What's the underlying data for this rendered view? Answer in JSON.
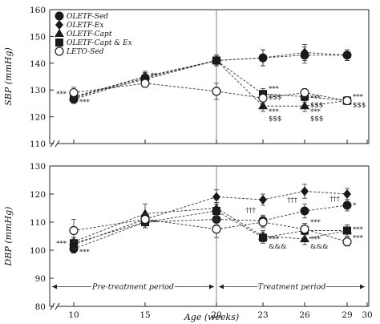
{
  "chart_data": [
    {
      "type": "line",
      "ylabel": "SBP (mmHg)",
      "ylim": [
        110,
        160
      ],
      "yticks": [
        110,
        120,
        130,
        140,
        150,
        160
      ],
      "x": [
        10,
        15,
        20,
        23,
        26,
        29
      ],
      "legend_position": "top-left",
      "series": [
        {
          "name": "OLETF-Sed",
          "marker": "circle-filled",
          "values": [
            126.5,
            134.5,
            141,
            142,
            143,
            143
          ],
          "errors": [
            1.5,
            1.5,
            2,
            3,
            3,
            2
          ]
        },
        {
          "name": "OLETF-Ex",
          "marker": "diamond-filled",
          "values": [
            127,
            135,
            141,
            142,
            144,
            143
          ],
          "errors": [
            1.5,
            1.5,
            2,
            3,
            3,
            2
          ]
        },
        {
          "name": "OLETF-Capt",
          "marker": "triangle-filled",
          "values": [
            127.5,
            135,
            141,
            124,
            124,
            126
          ],
          "errors": [
            1.5,
            2,
            2,
            2,
            2,
            1.5
          ]
        },
        {
          "name": "OLETF-Capt & Ex",
          "marker": "square-filled",
          "values": [
            127.5,
            134,
            141,
            128.5,
            127.5,
            126
          ],
          "errors": [
            1.5,
            2,
            2,
            2,
            2,
            1.5
          ]
        },
        {
          "name": "LETO-Sed",
          "marker": "circle-open",
          "values": [
            129,
            132.5,
            129.5,
            127,
            129,
            126
          ],
          "errors": [
            2,
            1.5,
            3,
            2,
            1.5,
            1.5
          ]
        }
      ],
      "annotations": [
        {
          "x": 10,
          "y": 128.5,
          "text": "***",
          "side": "left"
        },
        {
          "x": 10,
          "y": 125.5,
          "text": "***",
          "side": "right"
        },
        {
          "x": 15,
          "y": 135.5,
          "text": "**",
          "side": "right"
        },
        {
          "x": 23,
          "y": 130.5,
          "text": "***",
          "side": "right"
        },
        {
          "x": 23,
          "y": 127.5,
          "text": "$$$",
          "side": "right"
        },
        {
          "x": 23,
          "y": 122,
          "text": "***",
          "side": "right"
        },
        {
          "x": 23,
          "y": 119.5,
          "text": "$$$",
          "side": "right"
        },
        {
          "x": 26,
          "y": 127,
          "text": "***",
          "side": "right"
        },
        {
          "x": 26,
          "y": 124.5,
          "text": "$$$",
          "side": "right"
        },
        {
          "x": 26,
          "y": 122,
          "text": "***",
          "side": "right"
        },
        {
          "x": 26,
          "y": 119.5,
          "text": "$$$",
          "side": "right"
        },
        {
          "x": 29,
          "y": 127.5,
          "text": "***",
          "side": "right"
        },
        {
          "x": 29,
          "y": 124.5,
          "text": "$$$",
          "side": "right"
        }
      ]
    },
    {
      "type": "line",
      "xlabel": "Age (weeks)",
      "ylabel": "DBP (mmHg)",
      "ylim": [
        80,
        130
      ],
      "yticks": [
        80,
        90,
        100,
        110,
        120,
        130
      ],
      "x": [
        10,
        15,
        20,
        23,
        26,
        29
      ],
      "xticks": [
        "10",
        "15",
        "20",
        "23",
        "26",
        "29",
        "30"
      ],
      "series": [
        {
          "name": "OLETF-Sed",
          "marker": "circle-filled",
          "values": [
            100.5,
            110,
            111,
            110.5,
            114,
            116
          ],
          "errors": [
            1.5,
            2,
            2,
            2,
            2.5,
            2
          ]
        },
        {
          "name": "OLETF-Ex",
          "marker": "diamond-filled",
          "values": [
            102,
            111,
            119,
            118,
            121,
            120
          ],
          "errors": [
            1.5,
            2,
            2.5,
            2,
            2.5,
            2
          ]
        },
        {
          "name": "OLETF-Capt",
          "marker": "triangle-filled",
          "values": [
            103,
            113,
            115,
            105,
            104,
            107
          ],
          "errors": [
            1.5,
            3.5,
            3,
            2,
            2,
            2
          ]
        },
        {
          "name": "OLETF-Capt & Ex",
          "marker": "square-filled",
          "values": [
            102.5,
            110,
            114,
            104.5,
            107,
            107
          ],
          "errors": [
            2,
            2,
            3,
            2,
            2.5,
            2
          ]
        },
        {
          "name": "LETO-Sed",
          "marker": "circle-open",
          "values": [
            107,
            111,
            107.5,
            110,
            107.5,
            103
          ],
          "errors": [
            4,
            2,
            3,
            2,
            2,
            1.5
          ]
        }
      ],
      "period_labels": [
        {
          "text": "Pre-treatment period",
          "from": 8.2,
          "to": 20,
          "y": 87
        },
        {
          "text": "Treatment period",
          "from": 20,
          "to": 30,
          "y": 87
        }
      ],
      "annotations": [
        {
          "x": 10,
          "y": 102.5,
          "text": "***",
          "side": "left"
        },
        {
          "x": 10,
          "y": 99.5,
          "text": "***",
          "side": "right"
        },
        {
          "x": 15,
          "y": 110,
          "text": "**",
          "side": "right"
        },
        {
          "x": 23,
          "y": 114.5,
          "text": "†††",
          "side": "left"
        },
        {
          "x": 26,
          "y": 118,
          "text": "†††",
          "side": "left"
        },
        {
          "x": 29,
          "y": 118.5,
          "text": "†††",
          "side": "left"
        },
        {
          "x": 29,
          "y": 116,
          "text": "*",
          "side": "right"
        },
        {
          "x": 23,
          "y": 104,
          "text": "***",
          "side": "right"
        },
        {
          "x": 23,
          "y": 101.5,
          "text": "&&&",
          "side": "right"
        },
        {
          "x": 26,
          "y": 110,
          "text": "***",
          "side": "right"
        },
        {
          "x": 26,
          "y": 104,
          "text": "***",
          "side": "right"
        },
        {
          "x": 26,
          "y": 101.5,
          "text": "&&&",
          "side": "right"
        },
        {
          "x": 29,
          "y": 107.5,
          "text": "***",
          "side": "right"
        },
        {
          "x": 29,
          "y": 104.5,
          "text": "***",
          "side": "right"
        }
      ]
    }
  ]
}
